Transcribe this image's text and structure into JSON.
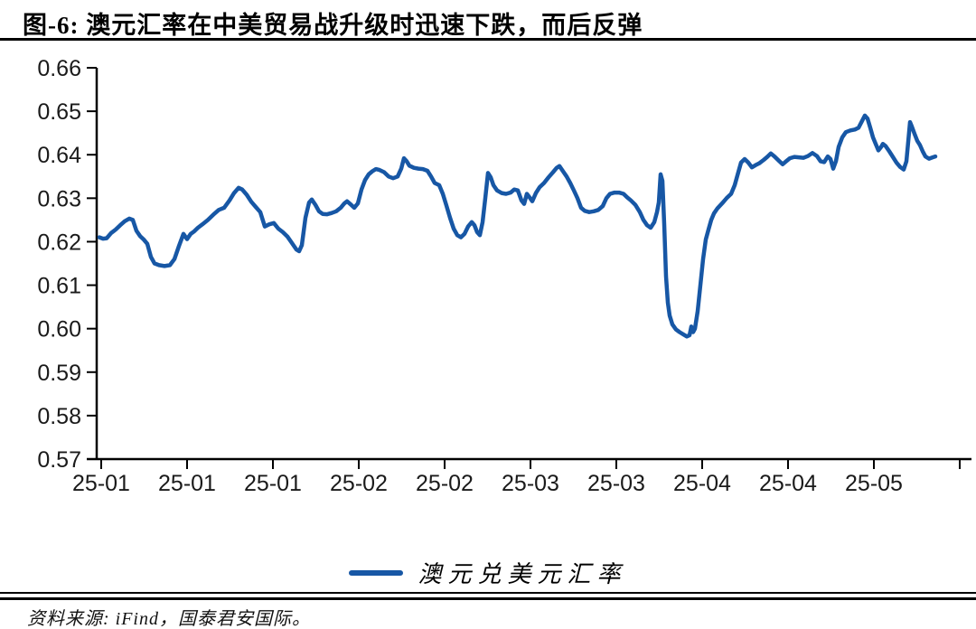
{
  "title": "图-6: 澳元汇率在中美贸易战升级时迅速下跌，而后反弹",
  "source_note": "资料来源: iFind，国泰君安国际。",
  "legend": {
    "label": "澳元兑美元汇率"
  },
  "colors": {
    "line": "#1757A5",
    "axis": "#000000",
    "tick_text": "#1a1a1a"
  },
  "chart_data": {
    "type": "line",
    "title": "澳元汇率在中美贸易战升级时迅速下跌，而后反弹",
    "xlabel": "",
    "ylabel": "",
    "ylim": [
      0.57,
      0.66
    ],
    "grid": false,
    "legend_position": "bottom",
    "y_ticks": [
      0.66,
      0.65,
      0.64,
      0.63,
      0.62,
      0.61,
      0.6,
      0.59,
      0.58,
      0.57
    ],
    "x_tick_labels": [
      "25-01",
      "25-01",
      "25-01",
      "25-02",
      "25-02",
      "25-03",
      "25-03",
      "25-04",
      "25-04",
      "25-05"
    ],
    "series": [
      {
        "name": "澳元兑美元汇率",
        "points": [
          [
            110,
            0.621
          ],
          [
            114,
            0.6207
          ],
          [
            118,
            0.6208
          ],
          [
            123,
            0.622
          ],
          [
            128,
            0.6228
          ],
          [
            133,
            0.6238
          ],
          [
            138,
            0.6247
          ],
          [
            143,
            0.6253
          ],
          [
            147,
            0.625
          ],
          [
            151,
            0.6225
          ],
          [
            155,
            0.6213
          ],
          [
            159,
            0.6205
          ],
          [
            163,
            0.6195
          ],
          [
            167,
            0.6165
          ],
          [
            171,
            0.615
          ],
          [
            176,
            0.6146
          ],
          [
            182,
            0.6144
          ],
          [
            188,
            0.6146
          ],
          [
            193,
            0.616
          ],
          [
            198,
            0.619
          ],
          [
            203,
            0.6218
          ],
          [
            207,
            0.6206
          ],
          [
            211,
            0.6218
          ],
          [
            215,
            0.6224
          ],
          [
            219,
            0.6232
          ],
          [
            224,
            0.624
          ],
          [
            230,
            0.625
          ],
          [
            236,
            0.6262
          ],
          [
            242,
            0.6273
          ],
          [
            248,
            0.6278
          ],
          [
            254,
            0.6295
          ],
          [
            259,
            0.6312
          ],
          [
            264,
            0.6324
          ],
          [
            268,
            0.632
          ],
          [
            273,
            0.6308
          ],
          [
            278,
            0.6292
          ],
          [
            283,
            0.628
          ],
          [
            288,
            0.6268
          ],
          [
            293,
            0.6235
          ],
          [
            298,
            0.624
          ],
          [
            303,
            0.6243
          ],
          [
            308,
            0.623
          ],
          [
            313,
            0.6222
          ],
          [
            318,
            0.6212
          ],
          [
            323,
            0.6197
          ],
          [
            328,
            0.6182
          ],
          [
            331,
            0.6178
          ],
          [
            334,
            0.6192
          ],
          [
            338,
            0.6255
          ],
          [
            342,
            0.629
          ],
          [
            345,
            0.6297
          ],
          [
            349,
            0.6285
          ],
          [
            353,
            0.627
          ],
          [
            357,
            0.6264
          ],
          [
            362,
            0.6263
          ],
          [
            367,
            0.6266
          ],
          [
            372,
            0.627
          ],
          [
            377,
            0.6278
          ],
          [
            381,
            0.6288
          ],
          [
            384,
            0.6293
          ],
          [
            388,
            0.6286
          ],
          [
            392,
            0.6278
          ],
          [
            396,
            0.6288
          ],
          [
            400,
            0.632
          ],
          [
            404,
            0.6342
          ],
          [
            408,
            0.6355
          ],
          [
            412,
            0.6362
          ],
          [
            416,
            0.6367
          ],
          [
            420,
            0.6365
          ],
          [
            425,
            0.636
          ],
          [
            430,
            0.635
          ],
          [
            435,
            0.6346
          ],
          [
            440,
            0.635
          ],
          [
            444,
            0.6368
          ],
          [
            447,
            0.6392
          ],
          [
            450,
            0.6385
          ],
          [
            453,
            0.6375
          ],
          [
            458,
            0.637
          ],
          [
            463,
            0.6368
          ],
          [
            468,
            0.6367
          ],
          [
            473,
            0.6363
          ],
          [
            477,
            0.635
          ],
          [
            481,
            0.6335
          ],
          [
            486,
            0.633
          ],
          [
            490,
            0.631
          ],
          [
            494,
            0.6283
          ],
          [
            498,
            0.6255
          ],
          [
            502,
            0.623
          ],
          [
            506,
            0.6215
          ],
          [
            510,
            0.621
          ],
          [
            514,
            0.6218
          ],
          [
            518,
            0.6235
          ],
          [
            522,
            0.6245
          ],
          [
            525,
            0.6238
          ],
          [
            528,
            0.6222
          ],
          [
            531,
            0.6215
          ],
          [
            534,
            0.6245
          ],
          [
            537,
            0.63
          ],
          [
            540,
            0.6358
          ],
          [
            543,
            0.6348
          ],
          [
            546,
            0.633
          ],
          [
            550,
            0.6318
          ],
          [
            555,
            0.6312
          ],
          [
            560,
            0.631
          ],
          [
            565,
            0.6313
          ],
          [
            569,
            0.632
          ],
          [
            573,
            0.6318
          ],
          [
            577,
            0.6295
          ],
          [
            580,
            0.6287
          ],
          [
            583,
            0.631
          ],
          [
            586,
            0.6302
          ],
          [
            589,
            0.6293
          ],
          [
            593,
            0.6312
          ],
          [
            597,
            0.6325
          ],
          [
            602,
            0.6335
          ],
          [
            607,
            0.6348
          ],
          [
            612,
            0.636
          ],
          [
            616,
            0.637
          ],
          [
            619,
            0.6374
          ],
          [
            623,
            0.6362
          ],
          [
            627,
            0.635
          ],
          [
            631,
            0.6335
          ],
          [
            635,
            0.6318
          ],
          [
            639,
            0.63
          ],
          [
            643,
            0.6278
          ],
          [
            647,
            0.6271
          ],
          [
            652,
            0.6268
          ],
          [
            657,
            0.627
          ],
          [
            662,
            0.6273
          ],
          [
            667,
            0.6282
          ],
          [
            671,
            0.63
          ],
          [
            675,
            0.631
          ],
          [
            680,
            0.6313
          ],
          [
            685,
            0.6313
          ],
          [
            690,
            0.631
          ],
          [
            694,
            0.6302
          ],
          [
            698,
            0.6295
          ],
          [
            703,
            0.6285
          ],
          [
            708,
            0.6268
          ],
          [
            712,
            0.625
          ],
          [
            716,
            0.6238
          ],
          [
            720,
            0.6232
          ],
          [
            724,
            0.6245
          ],
          [
            727,
            0.6268
          ],
          [
            729,
            0.629
          ],
          [
            731,
            0.6355
          ],
          [
            733,
            0.634
          ],
          [
            735,
            0.624
          ],
          [
            737,
            0.612
          ],
          [
            739,
            0.606
          ],
          [
            741,
            0.603
          ],
          [
            744,
            0.601
          ],
          [
            748,
            0.5998
          ],
          [
            752,
            0.5992
          ],
          [
            756,
            0.5987
          ],
          [
            760,
            0.5982
          ],
          [
            763,
            0.5985
          ],
          [
            765,
            0.6005
          ],
          [
            767,
            0.5992
          ],
          [
            769,
            0.6
          ],
          [
            772,
            0.604
          ],
          [
            775,
            0.61
          ],
          [
            778,
            0.616
          ],
          [
            781,
            0.6205
          ],
          [
            784,
            0.6228
          ],
          [
            787,
            0.625
          ],
          [
            790,
            0.6265
          ],
          [
            794,
            0.6277
          ],
          [
            799,
            0.6288
          ],
          [
            804,
            0.63
          ],
          [
            809,
            0.631
          ],
          [
            813,
            0.633
          ],
          [
            817,
            0.636
          ],
          [
            820,
            0.6382
          ],
          [
            824,
            0.639
          ],
          [
            828,
            0.6382
          ],
          [
            832,
            0.6371
          ],
          [
            836,
            0.6376
          ],
          [
            840,
            0.638
          ],
          [
            845,
            0.6388
          ],
          [
            849,
            0.6395
          ],
          [
            853,
            0.6403
          ],
          [
            857,
            0.6396
          ],
          [
            862,
            0.6386
          ],
          [
            866,
            0.6378
          ],
          [
            870,
            0.6385
          ],
          [
            874,
            0.6392
          ],
          [
            879,
            0.6395
          ],
          [
            884,
            0.6394
          ],
          [
            889,
            0.6393
          ],
          [
            894,
            0.6397
          ],
          [
            899,
            0.6404
          ],
          [
            904,
            0.6397
          ],
          [
            908,
            0.6385
          ],
          [
            912,
            0.6383
          ],
          [
            916,
            0.6396
          ],
          [
            919,
            0.639
          ],
          [
            922,
            0.6368
          ],
          [
            925,
            0.6385
          ],
          [
            928,
            0.6418
          ],
          [
            932,
            0.644
          ],
          [
            936,
            0.6452
          ],
          [
            941,
            0.6456
          ],
          [
            946,
            0.6458
          ],
          [
            950,
            0.6462
          ],
          [
            954,
            0.6478
          ],
          [
            957,
            0.649
          ],
          [
            960,
            0.6483
          ],
          [
            963,
            0.6462
          ],
          [
            966,
            0.644
          ],
          [
            969,
            0.6425
          ],
          [
            972,
            0.641
          ],
          [
            975,
            0.6418
          ],
          [
            977,
            0.6425
          ],
          [
            980,
            0.642
          ],
          [
            984,
            0.6408
          ],
          [
            988,
            0.6395
          ],
          [
            992,
            0.6382
          ],
          [
            996,
            0.6372
          ],
          [
            1000,
            0.6366
          ],
          [
            1003,
            0.6385
          ],
          [
            1005,
            0.643
          ],
          [
            1007,
            0.6475
          ],
          [
            1009,
            0.6465
          ],
          [
            1012,
            0.6448
          ],
          [
            1015,
            0.6432
          ],
          [
            1018,
            0.6422
          ],
          [
            1021,
            0.6408
          ],
          [
            1024,
            0.6396
          ],
          [
            1028,
            0.6391
          ],
          [
            1032,
            0.6394
          ],
          [
            1035,
            0.6396
          ]
        ]
      }
    ]
  }
}
